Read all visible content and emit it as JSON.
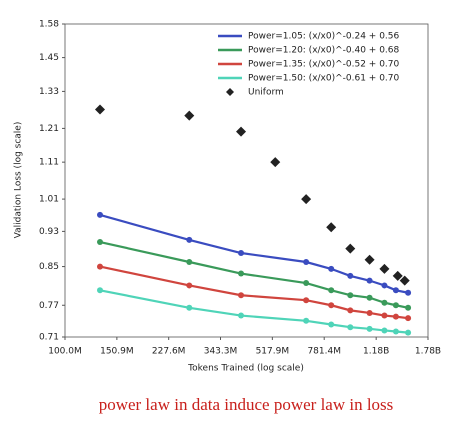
{
  "chart_data": {
    "type": "scatter-line",
    "xlabel": "Tokens Trained (log scale)",
    "ylabel": "Validation Loss (log scale)",
    "xscale": "log",
    "yscale": "log",
    "xlim": [
      100000000,
      1780000000
    ],
    "xticks": [
      {
        "value": 100000000,
        "label": "100.0M"
      },
      {
        "value": 150900000,
        "label": "150.9M"
      },
      {
        "value": 227600000,
        "label": "227.6M"
      },
      {
        "value": 343300000,
        "label": "343.3M"
      },
      {
        "value": 517900000,
        "label": "517.9M"
      },
      {
        "value": 781400000,
        "label": "781.4M"
      },
      {
        "value": 1180000000,
        "label": "1.18B"
      },
      {
        "value": 1780000000,
        "label": "1.78B"
      }
    ],
    "ylim": [
      0.71,
      1.58
    ],
    "yticks": [
      0.71,
      0.77,
      0.85,
      0.93,
      1.01,
      1.11,
      1.21,
      1.33,
      1.45,
      1.58
    ],
    "legend": "upper right",
    "series": [
      {
        "name": "Power=1.05: (x/x0)^-0.24 + 0.56",
        "color": "#3a4cc0",
        "marker": "circle",
        "line": true,
        "x": [
          132000000,
          268000000,
          404000000,
          677000000,
          826000000,
          961000000,
          1120000000,
          1260000000,
          1380000000,
          1520000000
        ],
        "values": [
          0.97,
          0.91,
          0.88,
          0.86,
          0.845,
          0.83,
          0.82,
          0.81,
          0.8,
          0.795
        ]
      },
      {
        "name": "Power=1.20: (x/x0)^-0.40 + 0.68",
        "color": "#3a9a5a",
        "marker": "circle",
        "line": true,
        "x": [
          132000000,
          268000000,
          404000000,
          677000000,
          826000000,
          961000000,
          1120000000,
          1260000000,
          1380000000,
          1520000000
        ],
        "values": [
          0.905,
          0.86,
          0.835,
          0.815,
          0.8,
          0.79,
          0.785,
          0.775,
          0.77,
          0.765
        ]
      },
      {
        "name": "Power=1.35: (x/x0)^-0.52 + 0.70",
        "color": "#d0453e",
        "marker": "circle",
        "line": true,
        "x": [
          132000000,
          268000000,
          404000000,
          677000000,
          826000000,
          961000000,
          1120000000,
          1260000000,
          1380000000,
          1520000000
        ],
        "values": [
          0.85,
          0.81,
          0.79,
          0.78,
          0.77,
          0.76,
          0.755,
          0.75,
          0.748,
          0.745
        ]
      },
      {
        "name": "Power=1.50: (x/x0)^-0.61 + 0.70",
        "color": "#4fd4b8",
        "marker": "circle",
        "line": true,
        "x": [
          132000000,
          268000000,
          404000000,
          677000000,
          826000000,
          961000000,
          1120000000,
          1260000000,
          1380000000,
          1520000000
        ],
        "values": [
          0.8,
          0.765,
          0.75,
          0.74,
          0.733,
          0.728,
          0.725,
          0.722,
          0.72,
          0.718
        ]
      },
      {
        "name": "Uniform",
        "color": "#222222",
        "marker": "diamond",
        "line": false,
        "x": [
          132000000,
          268000000,
          404000000,
          530000000,
          677000000,
          826000000,
          961000000,
          1120000000,
          1260000000,
          1400000000,
          1480000000
        ],
        "values": [
          1.27,
          1.25,
          1.2,
          1.11,
          1.01,
          0.94,
          0.89,
          0.865,
          0.845,
          0.83,
          0.82
        ]
      }
    ]
  },
  "caption": "power law in data induce power law in loss"
}
